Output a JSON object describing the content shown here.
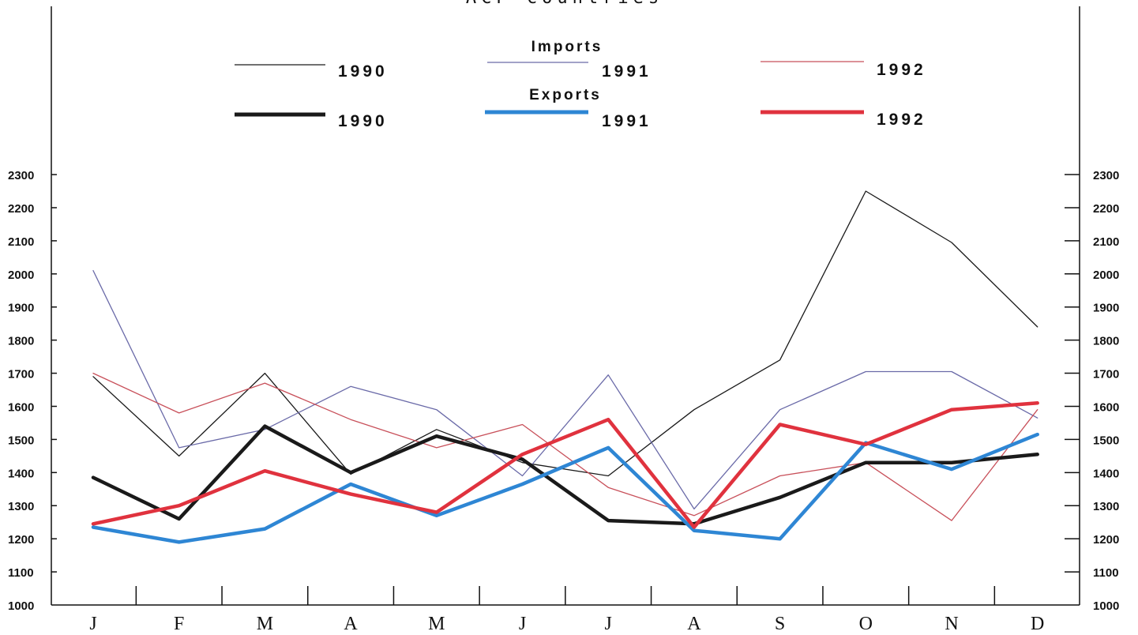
{
  "chart_data": {
    "type": "line",
    "title": "ACP countries",
    "categories": [
      "J",
      "F",
      "M",
      "A",
      "M",
      "J",
      "J",
      "A",
      "S",
      "O",
      "N",
      "D"
    ],
    "ylim": [
      1000,
      2300
    ],
    "yticks": [
      1000,
      1100,
      1200,
      1300,
      1400,
      1500,
      1600,
      1700,
      1800,
      1900,
      2000,
      2100,
      2200,
      2300
    ],
    "grid": false,
    "legend": {
      "placement": "top",
      "groups": [
        {
          "heading": "Imports",
          "years": [
            "1990",
            "1991",
            "1992"
          ]
        },
        {
          "heading": "Exports",
          "years": [
            "1990",
            "1991",
            "1992"
          ]
        }
      ]
    },
    "series": [
      {
        "name": "1990",
        "group": "Imports",
        "color": "#1a1a1a",
        "values": [
          1690,
          1450,
          1700,
          1395,
          1530,
          1430,
          1390,
          1590,
          1740,
          2250,
          2095,
          1840
        ]
      },
      {
        "name": "1991",
        "group": "Imports",
        "color": "#6a6aa8",
        "values": [
          2010,
          1475,
          1530,
          1660,
          1590,
          1390,
          1695,
          1290,
          1590,
          1705,
          1705,
          1565
        ]
      },
      {
        "name": "1992",
        "group": "Imports",
        "color": "#c8505a",
        "values": [
          1700,
          1580,
          1670,
          1560,
          1475,
          1545,
          1355,
          1270,
          1390,
          1430,
          1255,
          1590
        ]
      },
      {
        "name": "1990",
        "group": "Exports",
        "color": "#1a1a1a",
        "values": [
          1385,
          1260,
          1540,
          1400,
          1510,
          1440,
          1255,
          1245,
          1325,
          1430,
          1430,
          1455
        ]
      },
      {
        "name": "1991",
        "group": "Exports",
        "color": "#2e86d4",
        "values": [
          1235,
          1190,
          1230,
          1365,
          1270,
          1365,
          1475,
          1225,
          1200,
          1490,
          1410,
          1515
        ]
      },
      {
        "name": "1992",
        "group": "Exports",
        "color": "#e0323e",
        "values": [
          1245,
          1300,
          1405,
          1335,
          1280,
          1455,
          1560,
          1235,
          1545,
          1485,
          1590,
          1610
        ]
      }
    ]
  }
}
